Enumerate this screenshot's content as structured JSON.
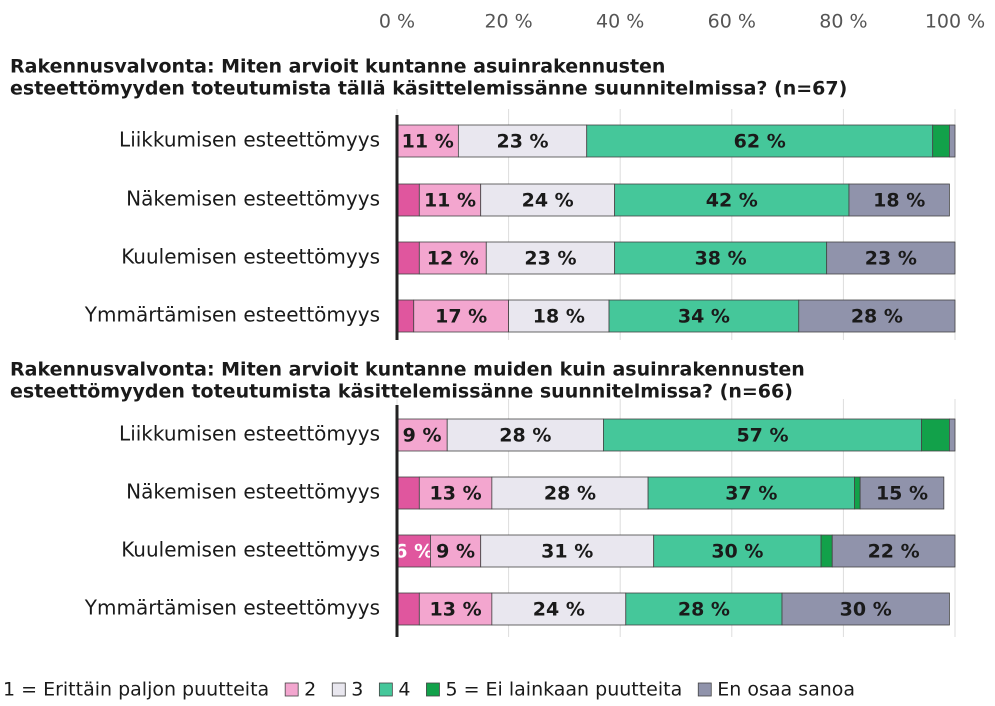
{
  "chart_data": [
    {
      "type": "bar",
      "title": "Rakennusvalvonta: Miten arvioit kuntanne asuinrakennusten esteettömyyden toteutumista tällä käsittelemissänne suunnitelmissa? (n=67)",
      "title_lines": [
        "Rakennusvalvonta: Miten arvioit kuntanne asuinrakennusten",
        "esteettömyyden toteutumista tällä käsittelemissänne suunnitelmissa? (n=67)"
      ],
      "categories": [
        "Liikkumisen esteettömyys",
        "Näkemisen esteettömyys",
        "Kuulemisen esteettömyys",
        "Ymmärtämisen esteettömyys"
      ],
      "xlim": [
        0,
        100
      ],
      "xticks": [
        {
          "value": 0,
          "label": "0 %"
        },
        {
          "value": 20,
          "label": "20 %"
        },
        {
          "value": 40,
          "label": "40 %"
        },
        {
          "value": 60,
          "label": "60 %"
        },
        {
          "value": 80,
          "label": "80 %"
        },
        {
          "value": 100,
          "label": "100 %"
        }
      ],
      "grid": true,
      "legend": "bottom",
      "series": [
        {
          "name": "1 = Erittäin paljon puutteita",
          "color": "#e0569e",
          "values": [
            0,
            4,
            4,
            3
          ],
          "value_labels": [
            null,
            null,
            null,
            null
          ]
        },
        {
          "name": "2",
          "color": "#f3a6cf",
          "values": [
            11,
            11,
            12,
            17
          ],
          "value_labels": [
            "11 %",
            "11 %",
            "12 %",
            "17 %"
          ]
        },
        {
          "name": "3",
          "color": "#e9e7ef",
          "values": [
            23,
            24,
            23,
            18
          ],
          "value_labels": [
            "23 %",
            "24 %",
            "23 %",
            "18 %"
          ]
        },
        {
          "name": "4",
          "color": "#45c79a",
          "values": [
            62,
            42,
            38,
            34
          ],
          "value_labels": [
            "62 %",
            "42 %",
            "38 %",
            "34 %"
          ]
        },
        {
          "name": "5 = Ei lainkaan puutteita",
          "color": "#12a14a",
          "values": [
            3,
            0,
            0,
            0
          ],
          "value_labels": [
            null,
            null,
            null,
            null
          ]
        },
        {
          "name": "En osaa sanoa",
          "color": "#9093ab",
          "values": [
            1,
            18,
            23,
            28
          ],
          "value_labels": [
            null,
            "18 %",
            "23 %",
            "28 %"
          ]
        }
      ]
    },
    {
      "type": "bar",
      "title": "Rakennusvalvonta: Miten arvioit kuntanne muiden kuin asuinrakennusten esteettömyyden toteutumista käsittelemissänne suunnitelmissa? (n=66)",
      "title_lines": [
        "Rakennusvalvonta: Miten arvioit kuntanne muiden kuin asuinrakennusten",
        "esteettömyyden toteutumista käsittelemissänne suunnitelmissa? (n=66)"
      ],
      "categories": [
        "Liikkumisen esteettömyys",
        "Näkemisen esteettömyys",
        "Kuulemisen esteettömyys",
        "Ymmärtämisen esteettömyys"
      ],
      "series": [
        {
          "values": [
            0,
            4,
            6,
            4
          ],
          "value_labels": [
            null,
            null,
            "6 %",
            null
          ]
        },
        {
          "values": [
            9,
            13,
            9,
            13
          ],
          "value_labels": [
            "9 %",
            "13 %",
            "9 %",
            "13 %"
          ]
        },
        {
          "values": [
            28,
            28,
            31,
            24
          ],
          "value_labels": [
            "28 %",
            "28 %",
            "31 %",
            "24 %"
          ]
        },
        {
          "values": [
            57,
            37,
            30,
            28
          ],
          "value_labels": [
            "57 %",
            "37 %",
            "30 %",
            "28 %"
          ]
        },
        {
          "values": [
            5,
            1,
            2,
            0
          ],
          "value_labels": [
            null,
            null,
            null,
            null
          ]
        },
        {
          "values": [
            1,
            15,
            22,
            30
          ],
          "value_labels": [
            null,
            "15 %",
            "22 %",
            "30 %"
          ]
        }
      ]
    }
  ]
}
